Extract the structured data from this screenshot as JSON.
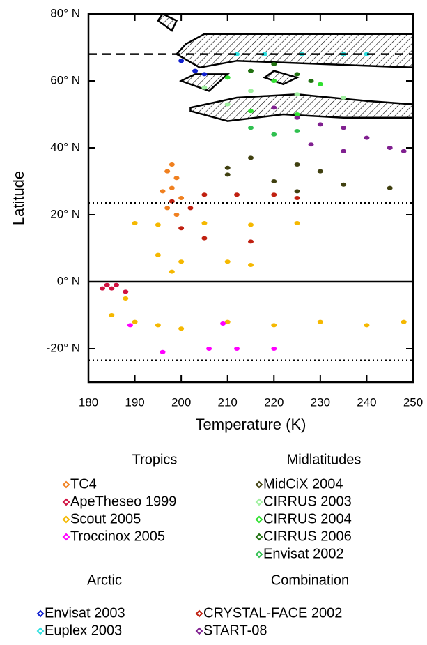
{
  "chart_data": {
    "type": "scatter",
    "x_label": "Temperature (K)",
    "y_label": "Latitude",
    "xlim": [
      180,
      250
    ],
    "ylim": [
      -30,
      80
    ],
    "xticks": [
      180,
      190,
      200,
      210,
      220,
      230,
      240,
      250
    ],
    "yticks": [
      {
        "value": -20,
        "label": "-20° N"
      },
      {
        "value": 0,
        "label": "0° N"
      },
      {
        "value": 20,
        "label": "20° N"
      },
      {
        "value": 40,
        "label": "40° N"
      },
      {
        "value": 60,
        "label": "60° N"
      },
      {
        "value": 80,
        "label": "80° N"
      }
    ],
    "reference_lines": [
      {
        "value": 68,
        "style": "dashed"
      },
      {
        "value": 23.5,
        "style": "dotted"
      },
      {
        "value": 0,
        "style": "solid"
      },
      {
        "value": -23.5,
        "style": "dotted"
      }
    ],
    "hatched_regions": [
      {
        "x": [
          196,
          199,
          198,
          195
        ],
        "y": [
          80,
          78,
          75,
          78
        ]
      },
      {
        "x": [
          199,
          201,
          205,
          250,
          250,
          212,
          204
        ],
        "y": [
          68,
          71,
          74,
          74,
          64,
          66,
          64
        ]
      },
      {
        "x": [
          200,
          203,
          210,
          206
        ],
        "y": [
          60,
          62,
          62,
          57
        ]
      },
      {
        "x": [
          218,
          220,
          225,
          222
        ],
        "y": [
          61,
          63,
          61,
          59
        ]
      },
      {
        "x": [
          202,
          212,
          225,
          240,
          250,
          250,
          235,
          222,
          210,
          202
        ],
        "y": [
          52,
          55,
          56,
          54,
          53,
          49,
          49,
          50,
          48,
          51
        ]
      }
    ],
    "groups": [
      {
        "name": "Tropics",
        "series": [
          {
            "name": "TC4",
            "color": "#f08020",
            "x": [
              197,
              198,
              199,
              198,
              200,
              197,
              199,
              196
            ],
            "y": [
              33,
              35,
              31,
              28,
              25,
              22,
              20,
              27
            ]
          },
          {
            "name": "ApeTheseo 1999",
            "color": "#d01040",
            "x": [
              183,
              186,
              188,
              185,
              184
            ],
            "y": [
              -2,
              -1,
              -3,
              -2,
              -1
            ]
          },
          {
            "name": "Scout 2005",
            "color": "#f5b800",
            "x": [
              190,
              195,
              205,
              215,
              225,
              195,
              200,
              210,
              215,
              198,
              188,
              185,
              195,
              210,
              230,
              248,
              200,
              220,
              240,
              190
            ],
            "y": [
              17.5,
              17,
              17.5,
              17,
              17.5,
              8,
              6,
              6,
              5,
              3,
              -5,
              -10,
              -13,
              -12,
              -12,
              -12,
              -14,
              -13,
              -13,
              -12
            ]
          },
          {
            "name": "Troccinox 2005",
            "color": "#ff00ff",
            "x": [
              196,
              206,
              212,
              220,
              189,
              209
            ],
            "y": [
              -21,
              -20,
              -20,
              -20,
              -13,
              -12.5
            ]
          }
        ]
      },
      {
        "name": "Midlatitudes",
        "series": [
          {
            "name": "MidCiX 2004",
            "color": "#404010",
            "x": [
              215,
              210,
              225,
              230,
              210,
              220,
              235,
              245,
              225
            ],
            "y": [
              37,
              34,
              35,
              33,
              32,
              30,
              29,
              28,
              27
            ]
          },
          {
            "name": "CIRRUS 2003",
            "color": "#a0f0a0",
            "x": [
              205,
              215,
              225,
              235,
              210
            ],
            "y": [
              58,
              57,
              56,
              55,
              53
            ]
          },
          {
            "name": "CIRRUS 2004",
            "color": "#30e030",
            "x": [
              210,
              220,
              230,
              215,
              225
            ],
            "y": [
              61,
              60,
              59,
              51,
              50
            ]
          },
          {
            "name": "CIRRUS 2006",
            "color": "#207010",
            "x": [
              215,
              220,
              225,
              228
            ],
            "y": [
              63,
              65,
              62,
              60
            ]
          },
          {
            "name": "Envisat 2002",
            "color": "#30c050",
            "x": [
              215,
              225,
              220
            ],
            "y": [
              46,
              45,
              44
            ]
          }
        ]
      },
      {
        "name": "Arctic",
        "series": [
          {
            "name": "Envisat 2003",
            "color": "#1020d0",
            "x": [
              200,
              203,
              205
            ],
            "y": [
              66,
              63,
              62
            ]
          },
          {
            "name": "Euplex 2003",
            "color": "#30e0e0",
            "x": [
              212,
              218,
              226,
              235,
              240
            ],
            "y": [
              68,
              68,
              68,
              68,
              68
            ]
          }
        ]
      },
      {
        "name": "Combination",
        "series": [
          {
            "name": "CRYSTAL-FACE 2002",
            "color": "#c02010",
            "x": [
              198,
              205,
              212,
              220,
              225,
              202,
              200,
              205,
              215
            ],
            "y": [
              24,
              26,
              26,
              26,
              25,
              22,
              16,
              13,
              12
            ]
          },
          {
            "name": "START-08",
            "color": "#802090",
            "x": [
              220,
              225,
              230,
              235,
              240,
              245,
              235,
              248,
              228
            ],
            "y": [
              52,
              49,
              47,
              46,
              43,
              40,
              39,
              39,
              41
            ]
          }
        ]
      }
    ]
  }
}
